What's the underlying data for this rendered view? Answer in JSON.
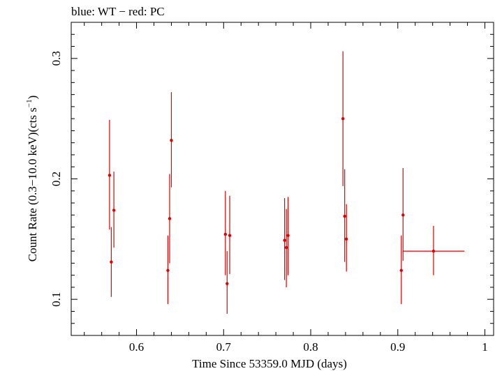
{
  "chart_data": {
    "type": "scatter",
    "title": "blue: WT − red: PC",
    "xlabel": "Time Since 53359.0 MJD (days)",
    "ylabel_main": "Count Rate (0.3−10.0 keV)(cts s",
    "ylabel_exp": "−1",
    "ylabel_close": ")",
    "xlim": [
      0.525,
      1.01
    ],
    "ylim": [
      0.07,
      0.33
    ],
    "x_ticks": [
      0.6,
      0.7,
      0.8,
      0.9,
      1
    ],
    "x_tick_labels": [
      "0.6",
      "0.7",
      "0.8",
      "0.9",
      "1"
    ],
    "y_ticks": [
      0.1,
      0.2,
      0.3
    ],
    "y_tick_labels": [
      "0.1",
      "0.2",
      "0.3"
    ],
    "grid": false,
    "color": "#e00000",
    "series": [
      {
        "points": [
          {
            "x": 0.569,
            "y": 0.203,
            "ylo": 0.158,
            "yhi": 0.249,
            "xerr": 0
          },
          {
            "x": 0.571,
            "y": 0.131,
            "ylo": 0.102,
            "yhi": 0.16,
            "xerr": 0
          },
          {
            "x": 0.574,
            "y": 0.174,
            "ylo": 0.143,
            "yhi": 0.206,
            "xerr": 0
          },
          {
            "x": 0.636,
            "y": 0.124,
            "ylo": 0.096,
            "yhi": 0.153,
            "xerr": 0
          },
          {
            "x": 0.638,
            "y": 0.167,
            "ylo": 0.13,
            "yhi": 0.204,
            "xerr": 0
          },
          {
            "x": 0.64,
            "y": 0.232,
            "ylo": 0.193,
            "yhi": 0.272,
            "xerr": 0
          },
          {
            "x": 0.702,
            "y": 0.154,
            "ylo": 0.12,
            "yhi": 0.19,
            "xerr": 0
          },
          {
            "x": 0.704,
            "y": 0.113,
            "ylo": 0.088,
            "yhi": 0.14,
            "xerr": 0
          },
          {
            "x": 0.707,
            "y": 0.153,
            "ylo": 0.121,
            "yhi": 0.186,
            "xerr": 0
          },
          {
            "x": 0.77,
            "y": 0.149,
            "ylo": 0.116,
            "yhi": 0.184,
            "xerr": 0
          },
          {
            "x": 0.772,
            "y": 0.143,
            "ylo": 0.11,
            "yhi": 0.175,
            "xerr": 0
          },
          {
            "x": 0.774,
            "y": 0.153,
            "ylo": 0.12,
            "yhi": 0.185,
            "xerr": 0
          },
          {
            "x": 0.837,
            "y": 0.25,
            "ylo": 0.194,
            "yhi": 0.306,
            "xerr": 0
          },
          {
            "x": 0.839,
            "y": 0.169,
            "ylo": 0.131,
            "yhi": 0.208,
            "xerr": 0
          },
          {
            "x": 0.841,
            "y": 0.15,
            "ylo": 0.123,
            "yhi": 0.179,
            "xerr": 0
          },
          {
            "x": 0.904,
            "y": 0.124,
            "ylo": 0.096,
            "yhi": 0.153,
            "xerr": 0
          },
          {
            "x": 0.906,
            "y": 0.17,
            "ylo": 0.132,
            "yhi": 0.209,
            "xerr": 0
          },
          {
            "x": 0.941,
            "y": 0.14,
            "ylo": 0.12,
            "yhi": 0.161,
            "xerr": 0.0355
          }
        ]
      }
    ]
  }
}
